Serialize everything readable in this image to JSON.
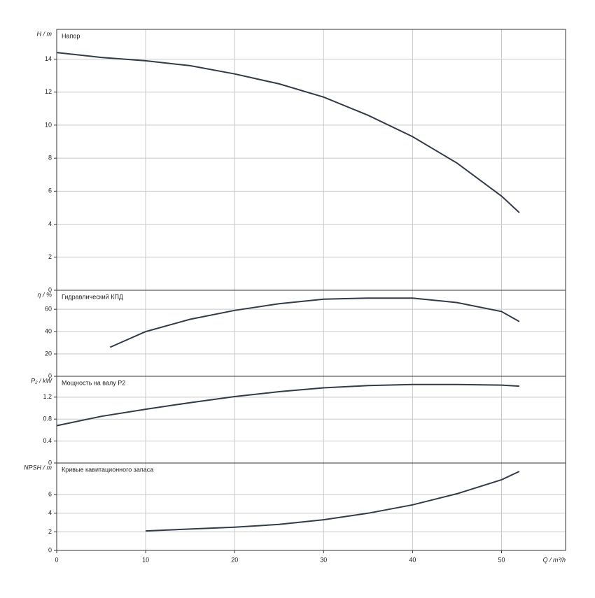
{
  "chart_data": [
    {
      "type": "line",
      "ylabel": "H / m",
      "title": "Напор",
      "xlim": [
        0,
        57.2
      ],
      "xticks": [
        0,
        10,
        20,
        30,
        40,
        50
      ],
      "ylim": [
        0,
        15.8
      ],
      "yticks": [
        0,
        2,
        4,
        6,
        8,
        10,
        12,
        14
      ],
      "grid": true,
      "series": [
        {
          "name": "Напор",
          "color": "#333a48",
          "x": [
            0,
            5,
            10,
            15,
            20,
            25,
            30,
            35,
            40,
            45,
            50,
            52
          ],
          "values": [
            14.4,
            14.1,
            13.9,
            13.6,
            13.1,
            12.5,
            11.7,
            10.6,
            9.3,
            7.7,
            5.7,
            4.7
          ]
        }
      ]
    },
    {
      "type": "line",
      "ylabel": "η / %",
      "title": "Гидравлический КПД",
      "xlim": [
        0,
        57.2
      ],
      "xticks": [
        0,
        10,
        20,
        30,
        40,
        50
      ],
      "ylim": [
        0,
        77
      ],
      "yticks": [
        0,
        20,
        40,
        60
      ],
      "grid": true,
      "series": [
        {
          "name": "Гидравлический КПД",
          "color": "#333a48",
          "x": [
            6,
            10,
            15,
            20,
            25,
            30,
            35,
            40,
            45,
            50,
            52
          ],
          "values": [
            26,
            40,
            51,
            59,
            65,
            69,
            70,
            70,
            66,
            58,
            49
          ]
        }
      ]
    },
    {
      "type": "line",
      "ylabel": "P₂ / kW",
      "title": "Мощность на валу P2",
      "xlim": [
        0,
        57.2
      ],
      "xticks": [
        0,
        10,
        20,
        30,
        40,
        50
      ],
      "ylim": [
        0,
        1.58
      ],
      "yticks": [
        0,
        0.4,
        0.8,
        1.2
      ],
      "grid": true,
      "series": [
        {
          "name": "Мощность на валу P2",
          "color": "#333a48",
          "x": [
            0,
            5,
            10,
            15,
            20,
            25,
            30,
            35,
            40,
            45,
            50,
            52
          ],
          "values": [
            0.68,
            0.85,
            0.98,
            1.1,
            1.21,
            1.3,
            1.37,
            1.41,
            1.43,
            1.43,
            1.42,
            1.4
          ]
        }
      ]
    },
    {
      "type": "line",
      "ylabel": "NPSH / m",
      "title": "Кривые кавитационного запаса",
      "xlabel": "Q / m³/h",
      "xlim": [
        0,
        57.2
      ],
      "xticks": [
        0,
        10,
        20,
        30,
        40,
        50
      ],
      "ylim": [
        0,
        9.4
      ],
      "yticks": [
        0,
        2,
        4,
        6
      ],
      "grid": true,
      "series": [
        {
          "name": "Кривые кавитационного запаса",
          "color": "#333a48",
          "x": [
            10,
            15,
            20,
            25,
            30,
            35,
            40,
            45,
            50,
            52
          ],
          "values": [
            2.1,
            2.3,
            2.5,
            2.8,
            3.3,
            4.0,
            4.9,
            6.1,
            7.6,
            8.5
          ]
        }
      ]
    }
  ]
}
